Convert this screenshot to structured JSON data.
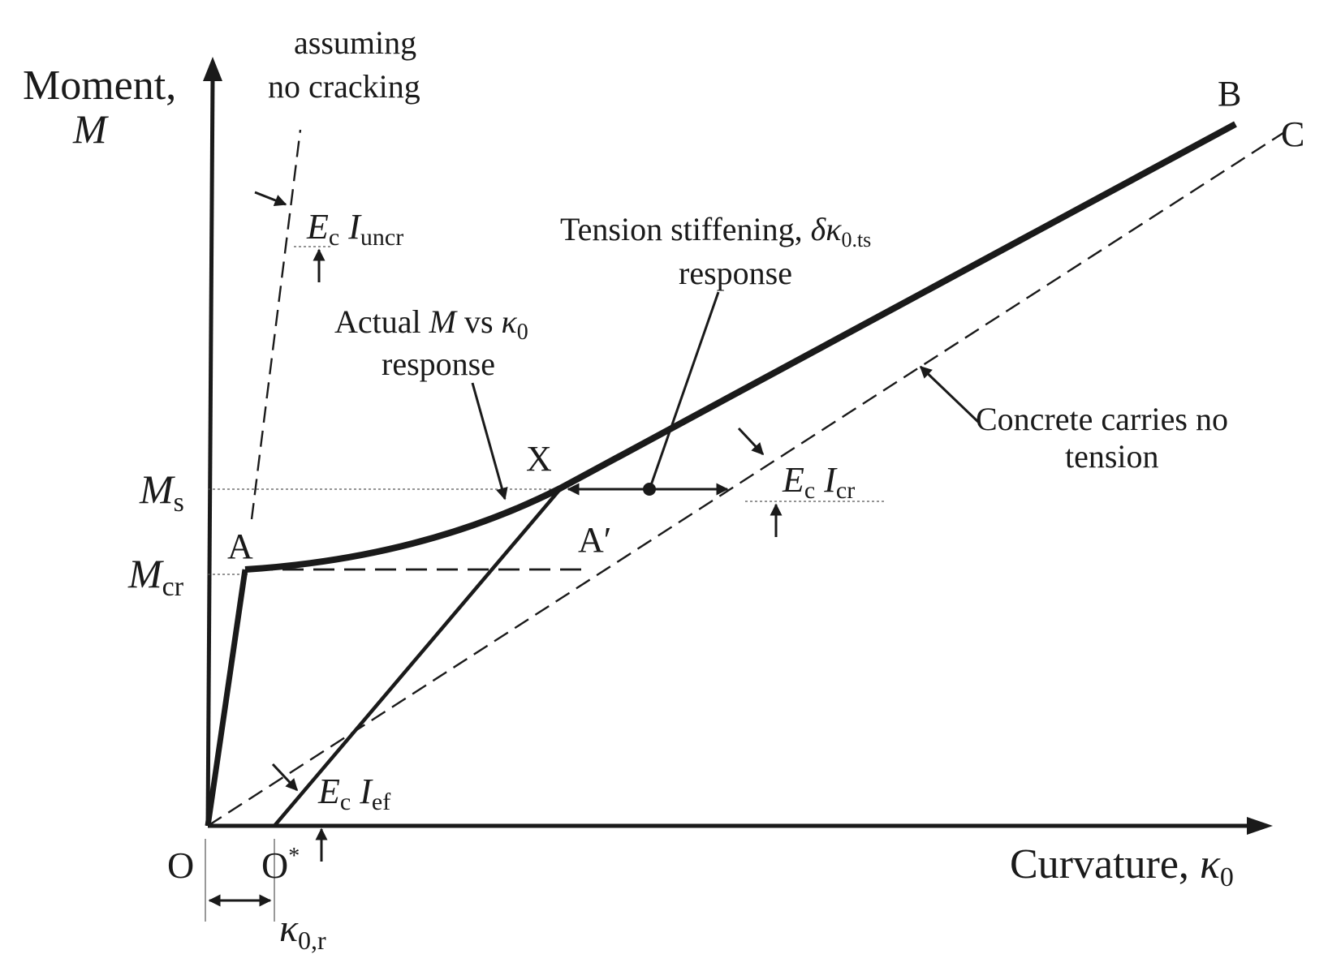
{
  "axes": {
    "y_title": "Moment,",
    "y_symbol": "M",
    "x_title": "Curvature,",
    "x_symbol": "κ",
    "x_symbol_sub": "0"
  },
  "axis_marks": {
    "Ms_symbol": "M",
    "Ms_sub": "s",
    "Mcr_symbol": "M",
    "Mcr_sub": "cr",
    "origin": "O",
    "origin_star": "O",
    "origin_star_sup": "*",
    "kappa_r_symbol": "κ",
    "kappa_r_sub": "0,r"
  },
  "points": {
    "A": "A",
    "A_prime": "A′",
    "X": "X",
    "B": "B",
    "C": "C"
  },
  "annotations": {
    "uncracked_line1": "assuming",
    "uncracked_line2": "no cracking",
    "EcIuncr_E": "E",
    "EcIuncr_c": "c",
    "EcIuncr_I": "I",
    "EcIuncr_sub": "uncr",
    "actual_line1_a": "Actual ",
    "actual_line1_M": "M",
    "actual_line1_b": " vs ",
    "actual_line1_k": "κ",
    "actual_line1_sub": "0",
    "actual_line2": "response",
    "ts_line1": "Tension stiffening, ",
    "ts_symbol": "δκ",
    "ts_sub": "0.ts",
    "ts_line2": "response",
    "nt_line1": "Concrete carries no",
    "nt_line2": "tension",
    "EcIcr_E": "E",
    "EcIcr_c": "c",
    "EcIcr_I": "I",
    "EcIcr_sub": "cr",
    "EcIef_E": "E",
    "EcIef_c": "c",
    "EcIef_I": "I",
    "EcIef_sub": "ef"
  },
  "colors": {
    "ink": "#1a1a1a",
    "background": "#ffffff"
  }
}
